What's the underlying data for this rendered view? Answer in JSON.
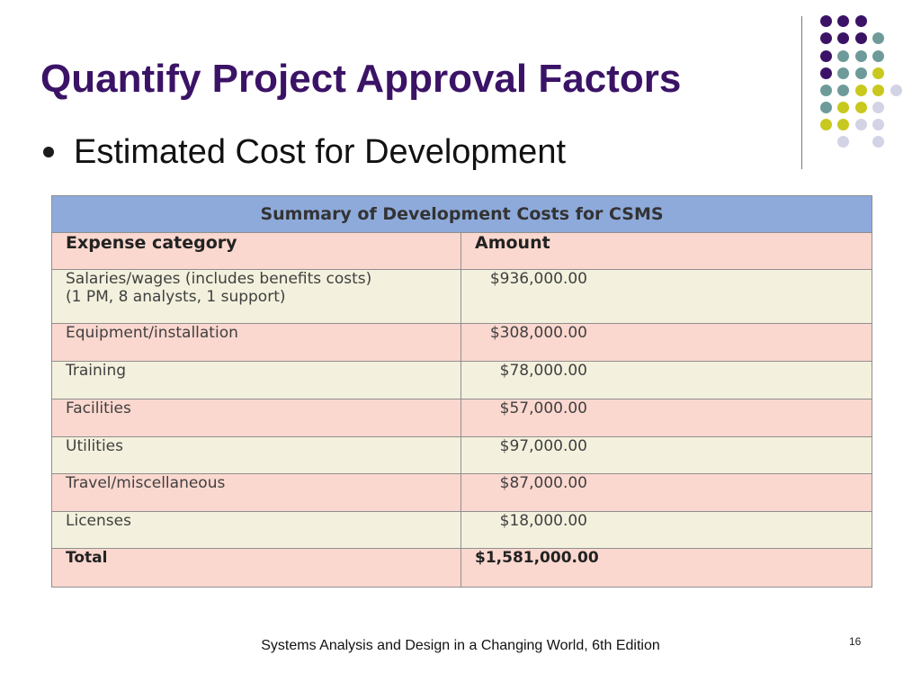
{
  "slide": {
    "title": "Quantify Project Approval Factors",
    "bullet": "Estimated Cost for Development",
    "footer": "Systems Analysis and Design in a Changing World, 6th Edition",
    "page_number": "16"
  },
  "palette": {
    "purple": "#3b1366",
    "teal": "#6e9b9a",
    "yellow": "#c8c81e",
    "lavender": "#d3d3e6"
  },
  "table": {
    "caption": "Summary of Development Costs for CSMS",
    "headers": [
      "Expense category",
      "Amount"
    ],
    "rows": [
      {
        "category": "Salaries/wages (includes benefits costs)\n(1 PM, 8 analysts, 1 support)",
        "amount": "$936,000.00"
      },
      {
        "category": "Equipment/installation",
        "amount": "$308,000.00"
      },
      {
        "category": "Training",
        "amount": "$78,000.00"
      },
      {
        "category": "Facilities",
        "amount": "$57,000.00"
      },
      {
        "category": "Utilities",
        "amount": "$97,000.00"
      },
      {
        "category": "Travel/miscellaneous",
        "amount": "$87,000.00"
      },
      {
        "category": "Licenses",
        "amount": "$18,000.00"
      }
    ],
    "total": {
      "label": "Total",
      "amount": "$1,581,000.00"
    }
  }
}
